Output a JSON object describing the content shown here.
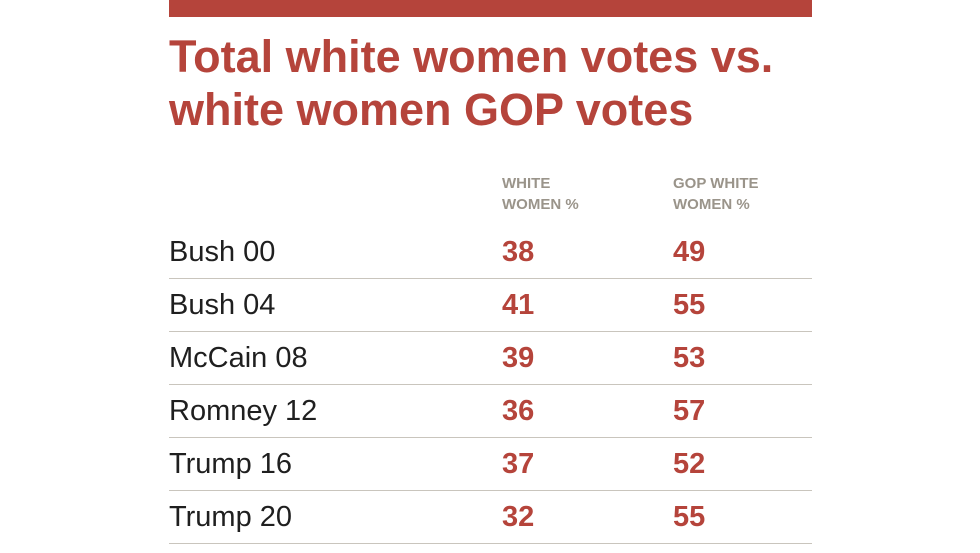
{
  "chart_data": {
    "type": "table",
    "title": "Total white women votes vs. white women GOP votes",
    "columns": [
      "WHITE WOMEN %",
      "GOP WHITE WOMEN %"
    ],
    "rows": [
      {
        "label": "Bush 00",
        "values": [
          "38",
          "49"
        ]
      },
      {
        "label": "Bush 04",
        "values": [
          "41",
          "55"
        ]
      },
      {
        "label": "McCain 08",
        "values": [
          "39",
          "53"
        ]
      },
      {
        "label": "Romney 12",
        "values": [
          "36",
          "57"
        ]
      },
      {
        "label": "Trump 16",
        "values": [
          "37",
          "52"
        ]
      },
      {
        "label": "Trump 20",
        "values": [
          "32",
          "55"
        ]
      }
    ]
  },
  "colors": {
    "accent": "#b5443b",
    "header_text": "#9a948a",
    "body_text": "#1f1f1f",
    "rule": "#c9c5bd"
  }
}
